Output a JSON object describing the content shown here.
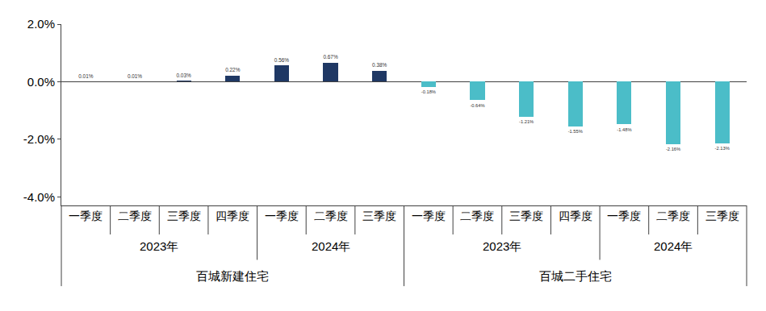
{
  "chart_data": {
    "type": "bar",
    "categories": [
      [
        "百城新建住宅",
        "2023年",
        "一季度"
      ],
      [
        "百城新建住宅",
        "2023年",
        "二季度"
      ],
      [
        "百城新建住宅",
        "2023年",
        "三季度"
      ],
      [
        "百城新建住宅",
        "2023年",
        "四季度"
      ],
      [
        "百城新建住宅",
        "2024年",
        "一季度"
      ],
      [
        "百城新建住宅",
        "2024年",
        "二季度"
      ],
      [
        "百城新建住宅",
        "2024年",
        "三季度"
      ],
      [
        "百城二手住宅",
        "2023年",
        "一季度"
      ],
      [
        "百城二手住宅",
        "2023年",
        "二季度"
      ],
      [
        "百城二手住宅",
        "2023年",
        "三季度"
      ],
      [
        "百城二手住宅",
        "2023年",
        "四季度"
      ],
      [
        "百城二手住宅",
        "2024年",
        "一季度"
      ],
      [
        "百城二手住宅",
        "2024年",
        "二季度"
      ],
      [
        "百城二手住宅",
        "2024年",
        "三季度"
      ]
    ],
    "values": [
      0.01,
      0.01,
      0.03,
      0.22,
      0.56,
      0.67,
      0.38,
      -0.18,
      -0.64,
      -1.21,
      -1.55,
      -1.48,
      -2.16,
      -2.13
    ],
    "value_labels": [
      "0.01%",
      "0.01%",
      "0.03%",
      "0.22%",
      "0.56%",
      "0.67%",
      "0.38%",
      "-0.18%",
      "-0.64%",
      "-1.21%",
      "-1.55%",
      "-1.48%",
      "-2.16%",
      "-2.13%"
    ],
    "colors": [
      "#1f3864",
      "#1f3864",
      "#1f3864",
      "#1f3864",
      "#1f3864",
      "#1f3864",
      "#1f3864",
      "#4bbdc8",
      "#4bbdc8",
      "#4bbdc8",
      "#4bbdc8",
      "#4bbdc8",
      "#4bbdc8",
      "#4bbdc8"
    ],
    "ylim": [
      -4.3,
      2.0
    ],
    "yticks": [
      {
        "value": -4,
        "label": "-4.0%"
      },
      {
        "value": -2,
        "label": "-2.0%"
      },
      {
        "value": 0,
        "label": "0.0%"
      },
      {
        "value": 2,
        "label": "2.0%"
      }
    ],
    "data_labels": true,
    "grid": false
  }
}
